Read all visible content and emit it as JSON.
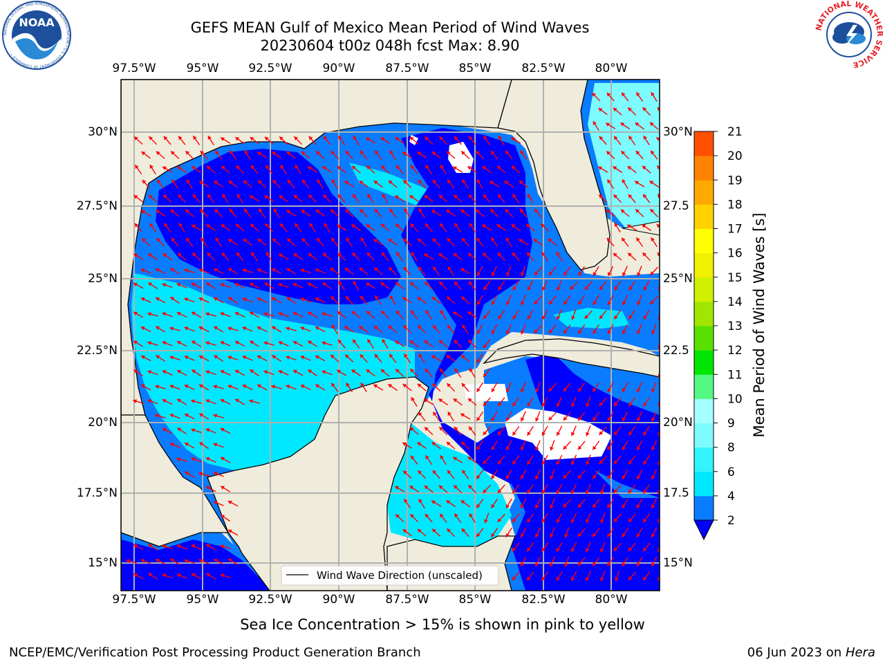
{
  "title": {
    "line1": "GEFS MEAN Gulf of Mexico Mean Period of Wind Waves",
    "line2": "20230604 t00z 048h fcst   Max: 8.90"
  },
  "logos": {
    "left": {
      "name": "NOAA",
      "text": "NOAA",
      "ring_text": "NATIONAL OCEANIC AND ATMOSPHERIC ADMINISTRATION • U.S. DEPARTMENT OF COMMERCE •",
      "color": "#1d4f9c"
    },
    "right": {
      "name": "National Weather Service",
      "ring_text": "NATIONAL WEATHER SERVICE",
      "color": "#e8202a"
    }
  },
  "map": {
    "lon_labels": [
      "97.5°W",
      "95°W",
      "92.5°W",
      "90°W",
      "87.5°W",
      "85°W",
      "82.5°W",
      "80°W"
    ],
    "lat_labels_left": [
      "30°N",
      "27.5°N",
      "25°N",
      "22.5°N",
      "20°N",
      "17.5°N",
      "15°N"
    ],
    "lat_labels_right": [
      "30°N",
      "27.5",
      "25°N",
      "22.5",
      "20°N",
      "17.5",
      "15°N"
    ],
    "legend_label": "Wind Wave Direction (unscaled)",
    "land_color": "#efecdc",
    "arrow_color": "#ff0000"
  },
  "colorbar": {
    "label": "Mean Period of Wind Waves [s]",
    "ticks": [
      "2",
      "4",
      "6",
      "8",
      "9",
      "10",
      "11",
      "12",
      "13",
      "14",
      "15",
      "16",
      "17",
      "18",
      "19",
      "20",
      "21"
    ],
    "colors": [
      "#0a7cff",
      "#00e8ff",
      "#33f3ff",
      "#7dfbff",
      "#a6ffff",
      "#53f882",
      "#00e600",
      "#5ae000",
      "#a0e600",
      "#cff000",
      "#f0f000",
      "#ffff00",
      "#ffd200",
      "#ffaa00",
      "#ff8200",
      "#ff5000",
      "#ff2000",
      "#ff0000"
    ],
    "extend_color": "#0000ff"
  },
  "note": "Sea Ice Concentration > 15% is shown in pink to yellow",
  "footer": {
    "left": "NCEP/EMC/Verification Post Processing Product Generation Branch",
    "right_date": "06 Jun 2023 on ",
    "right_host": "Hera"
  }
}
